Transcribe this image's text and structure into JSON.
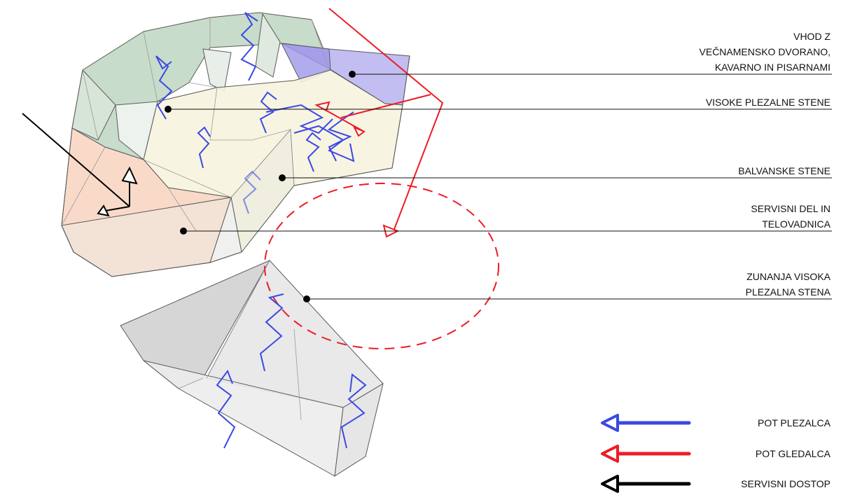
{
  "labels": [
    {
      "id": "entrance",
      "lines": [
        "VHOD Z",
        "VEČNAMENSKO DVORANO,",
        "KAVARNO IN PISARNAMI"
      ]
    },
    {
      "id": "high-walls",
      "lines": [
        "VISOKE PLEZALNE STENE"
      ]
    },
    {
      "id": "boulder-walls",
      "lines": [
        "BALVANSKE STENE"
      ]
    },
    {
      "id": "service-gym",
      "lines": [
        "SERVISNI DEL IN",
        "TELOVADNICA"
      ]
    },
    {
      "id": "outdoor-wall",
      "lines": [
        "ZUNANJA VISOKA",
        "PLEZALNA STENA"
      ]
    }
  ],
  "legend": [
    {
      "id": "climber-path",
      "label": "POT PLEZALCA",
      "color": "#3b48e6"
    },
    {
      "id": "spectator-path",
      "label": "POT GLEDALCA",
      "color": "#ee1c24"
    },
    {
      "id": "service-access",
      "label": "SERVISNI DOSTOP",
      "color": "#000000"
    }
  ],
  "colors": {
    "green_zone": "#b9d3bd",
    "purple_zone": "#b7b3ee",
    "yellow_zone": "#f6f3de",
    "orange_zone": "#f8d4c0",
    "grey_block": "#dcdcdc",
    "climber": "#3b48e6",
    "spectator": "#ee1c24",
    "service": "#000000"
  }
}
